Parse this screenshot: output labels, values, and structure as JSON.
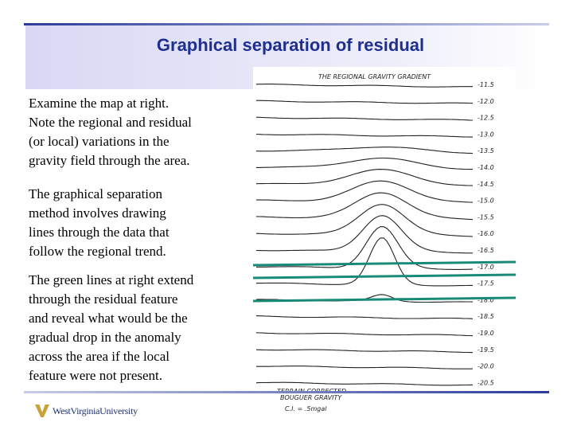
{
  "header": {
    "title": "Graphical separation of residual"
  },
  "body": {
    "paragraphs": [
      [
        "Examine the map at right.",
        "Note the regional and residual",
        "(or local) variations in the",
        "gravity field through the area."
      ],
      [
        "The graphical separation",
        "method involves drawing",
        "lines through the data that",
        "follow the regional trend."
      ],
      [
        "The green lines at right extend",
        "through the residual feature",
        "and reveal what would be the",
        "gradual drop in the anomaly",
        "across the area if the local",
        "feature were not present."
      ]
    ]
  },
  "map": {
    "title": "THE REGIONAL GRAVITY GRADIENT",
    "contour_labels": [
      "-11.5",
      "-12.0",
      "-12.5",
      "-13.0",
      "-13.5",
      "-14.0",
      "-14.5",
      "-15.0",
      "-15.5",
      "-16.0",
      "-16.5",
      "-17.0",
      "-17.5",
      "-18.0",
      "-18.5",
      "-19.0",
      "-19.5",
      "-20.0",
      "-20.5"
    ],
    "caption": [
      "TERRAIN CORRECTED",
      "BOUGUER GRAVITY"
    ],
    "interval": "C.I. = .5mgal"
  },
  "footer": {
    "logo": "WestVirginiaUniversity"
  }
}
